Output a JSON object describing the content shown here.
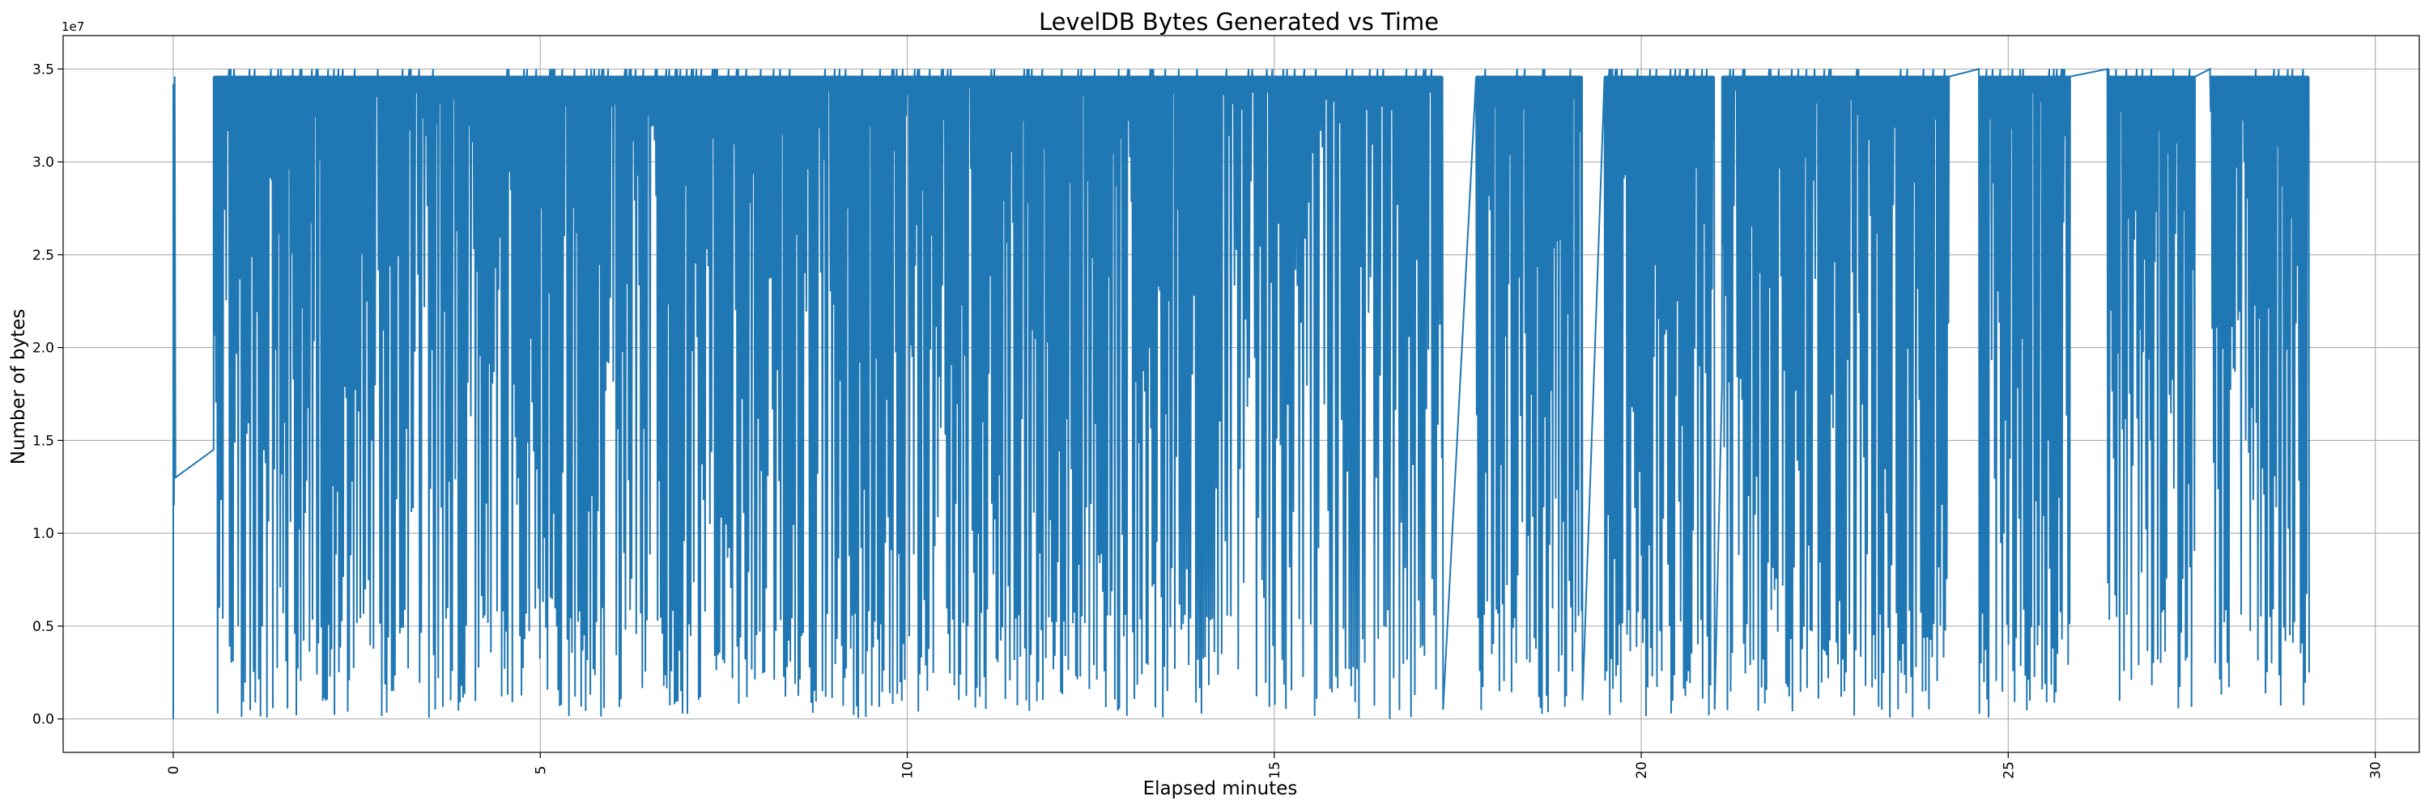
{
  "chart_data": {
    "type": "line",
    "title": "LevelDB Bytes Generated vs Time",
    "xlabel": "Elapsed minutes",
    "ylabel": "Number of bytes",
    "y_offset_label": "1e7",
    "xlim": [
      -1.5,
      30.6
    ],
    "ylim": [
      -0.18,
      3.68
    ],
    "y_unit_multiplier": 10000000,
    "x_ticks": [
      0,
      5,
      10,
      15,
      20,
      25,
      30
    ],
    "x_tick_labels": [
      "0",
      "5",
      "10",
      "15",
      "20",
      "25",
      "30"
    ],
    "y_ticks": [
      0.0,
      0.5,
      1.0,
      1.5,
      2.0,
      2.5,
      3.0,
      3.5
    ],
    "y_tick_labels": [
      "0.0",
      "0.5",
      "1.0",
      "1.5",
      "2.0",
      "2.5",
      "3.0",
      "3.5"
    ],
    "grid": true,
    "series": [
      {
        "color": "#1f77b4",
        "ceiling": 3.46,
        "peak": 3.5,
        "segments": [
          {
            "x_start": 0.55,
            "x_end": 1.25,
            "dips": 30
          },
          {
            "x_start": 1.25,
            "x_end": 2.45,
            "dips": 60
          },
          {
            "x_start": 2.45,
            "x_end": 3.35,
            "dips": 40
          },
          {
            "x_start": 3.35,
            "x_end": 4.3,
            "dips": 45
          },
          {
            "x_start": 4.3,
            "x_end": 6.8,
            "dips": 120
          },
          {
            "x_start": 6.8,
            "x_end": 9.1,
            "dips": 105
          },
          {
            "x_start": 9.1,
            "x_end": 11.35,
            "dips": 110
          },
          {
            "x_start": 11.35,
            "x_end": 13.7,
            "dips": 115
          },
          {
            "x_start": 13.7,
            "x_end": 15.2,
            "dips": 60
          },
          {
            "x_start": 15.2,
            "x_end": 17.3,
            "dips": 80
          },
          {
            "x_start": 17.75,
            "x_end": 19.2,
            "dips": 70
          },
          {
            "x_start": 19.5,
            "x_end": 21.0,
            "dips": 70
          },
          {
            "x_start": 21.1,
            "x_end": 24.2,
            "dips": 140
          },
          {
            "x_start": 24.6,
            "x_end": 25.85,
            "dips": 60
          },
          {
            "x_start": 26.35,
            "x_end": 27.55,
            "dips": 60
          },
          {
            "x_start": 27.75,
            "x_end": 29.1,
            "dips": 65
          }
        ],
        "points": [
          {
            "x": 0.0,
            "y": 0.0
          },
          {
            "x": 0.0,
            "y": 3.42
          },
          {
            "x": 0.01,
            "y": 1.15
          },
          {
            "x": 0.02,
            "y": 3.46
          },
          {
            "x": 0.03,
            "y": 1.3
          },
          {
            "x": 0.55,
            "y": 1.45
          },
          {
            "x": 17.3,
            "y": 0.05
          },
          {
            "x": 17.75,
            "y": 3.46
          },
          {
            "x": 19.2,
            "y": 0.1
          },
          {
            "x": 19.5,
            "y": 3.46
          },
          {
            "x": 21.0,
            "y": 0.05
          },
          {
            "x": 21.1,
            "y": 1.8
          },
          {
            "x": 24.2,
            "y": 3.46
          },
          {
            "x": 24.6,
            "y": 3.5
          },
          {
            "x": 25.85,
            "y": 3.46
          },
          {
            "x": 26.35,
            "y": 3.5
          },
          {
            "x": 27.55,
            "y": 3.46
          },
          {
            "x": 27.75,
            "y": 3.5
          },
          {
            "x": 29.1,
            "y": 0.25
          }
        ]
      }
    ]
  }
}
